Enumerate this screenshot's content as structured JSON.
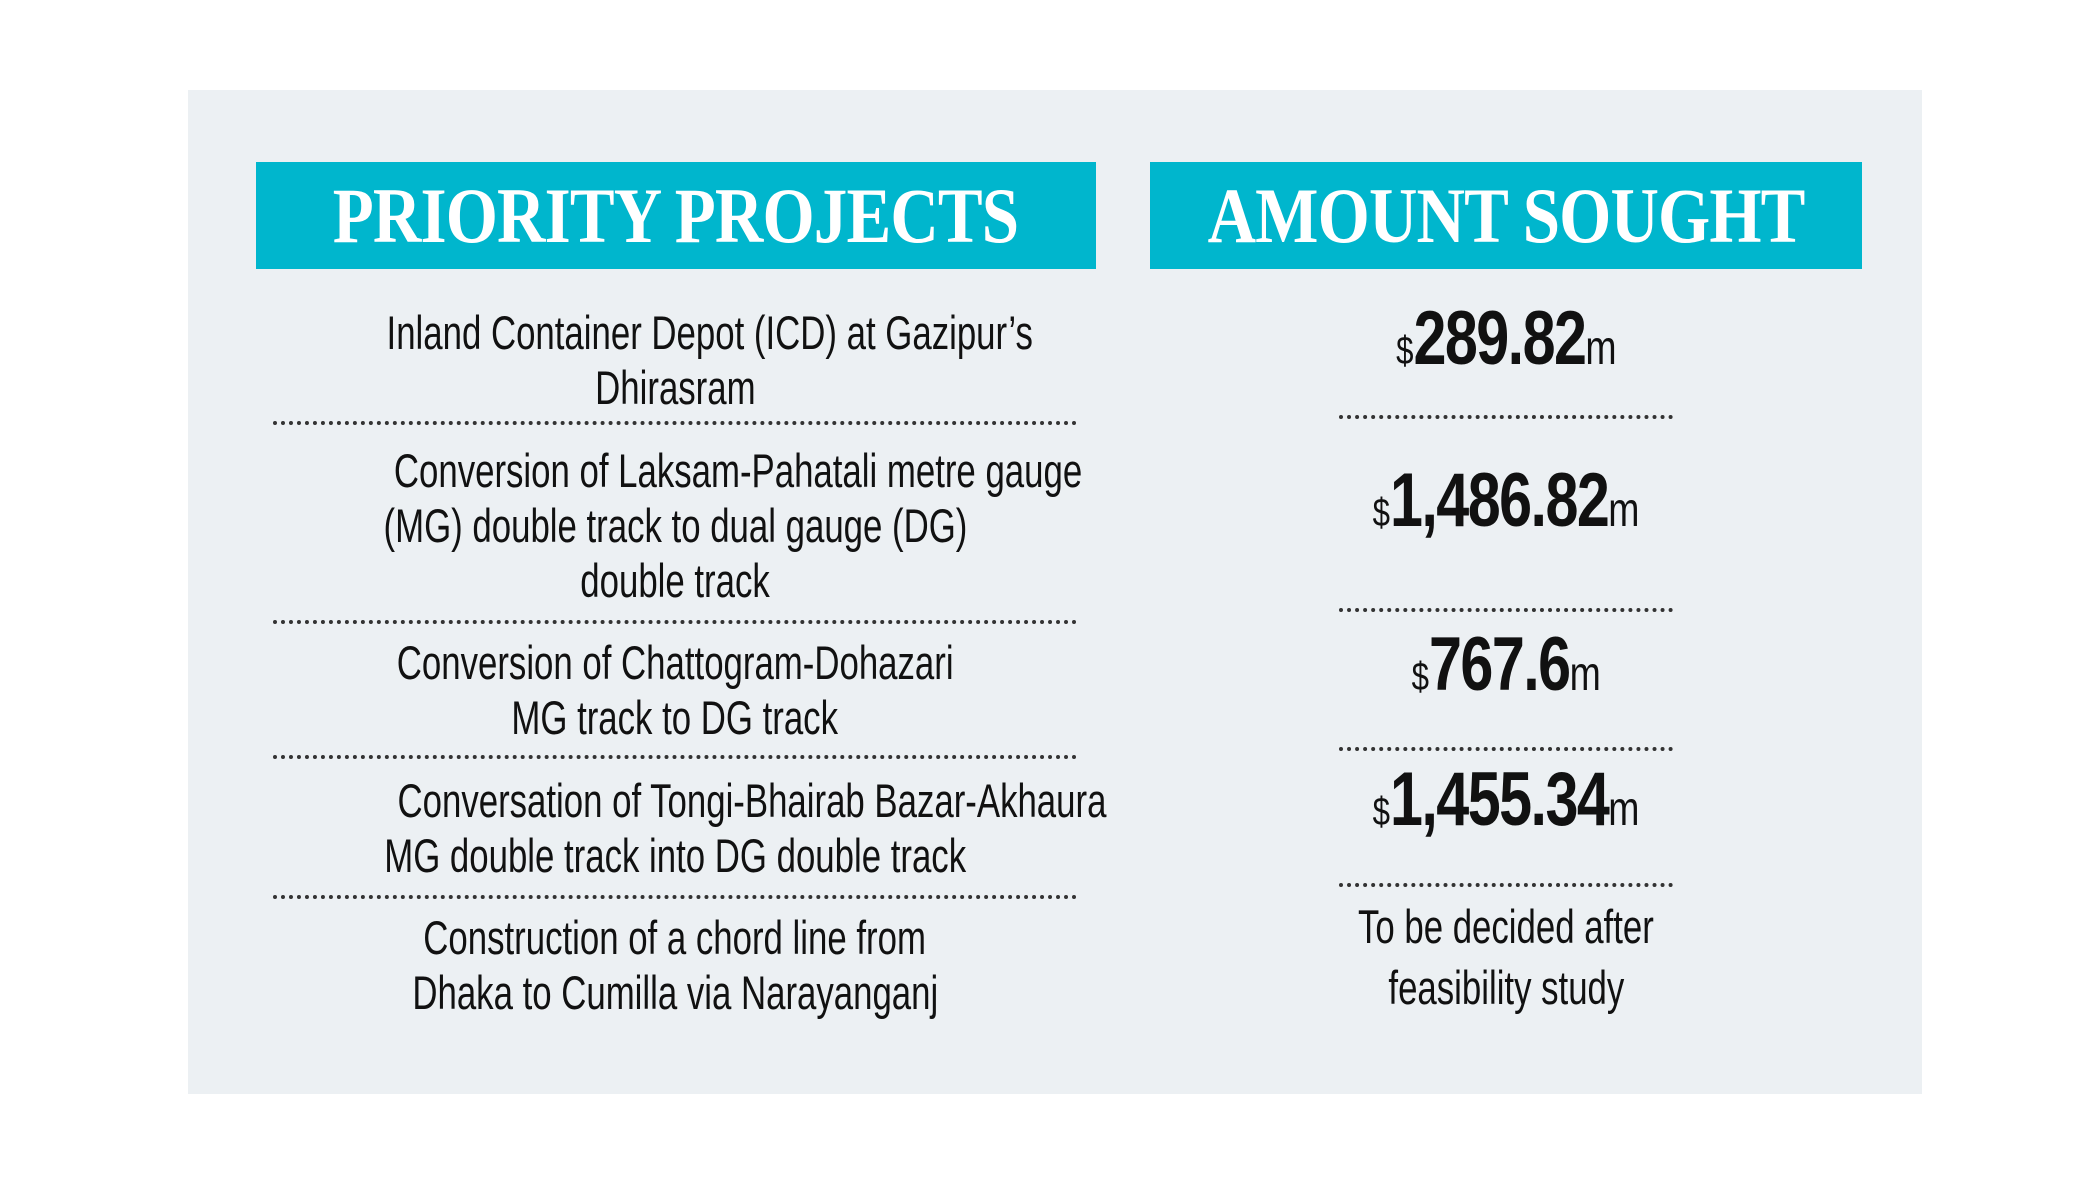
{
  "headers": {
    "projects": "PRIORITY PROJECTS",
    "amount": "AMOUNT SOUGHT"
  },
  "colors": {
    "header_bg": "#00b6cd",
    "panel_bg": "#ecf0f3"
  },
  "rows": [
    {
      "project": [
        "Inland Container Depot (ICD) at Gazipur’s",
        "Dhirasram"
      ],
      "currency": "$",
      "amount": "289.82",
      "unit": "m"
    },
    {
      "project": [
        "Conversion of Laksam-Pahatali metre gauge",
        "(MG) double track to dual gauge (DG)",
        "double track"
      ],
      "currency": "$",
      "amount": "1,486.82",
      "unit": "m"
    },
    {
      "project": [
        "Conversion of Chattogram-Dohazari",
        "MG track to DG track"
      ],
      "currency": "$",
      "amount": "767.6",
      "unit": "m"
    },
    {
      "project": [
        "Conversation of Tongi-Bhairab Bazar-Akhaura",
        "MG double track into DG double track"
      ],
      "currency": "$",
      "amount": "1,455.34",
      "unit": "m"
    },
    {
      "project": [
        "Construction of a chord line from",
        "Dhaka to Cumilla via Narayanganj"
      ],
      "note": [
        "To be decided after",
        "feasibility study"
      ]
    }
  ]
}
